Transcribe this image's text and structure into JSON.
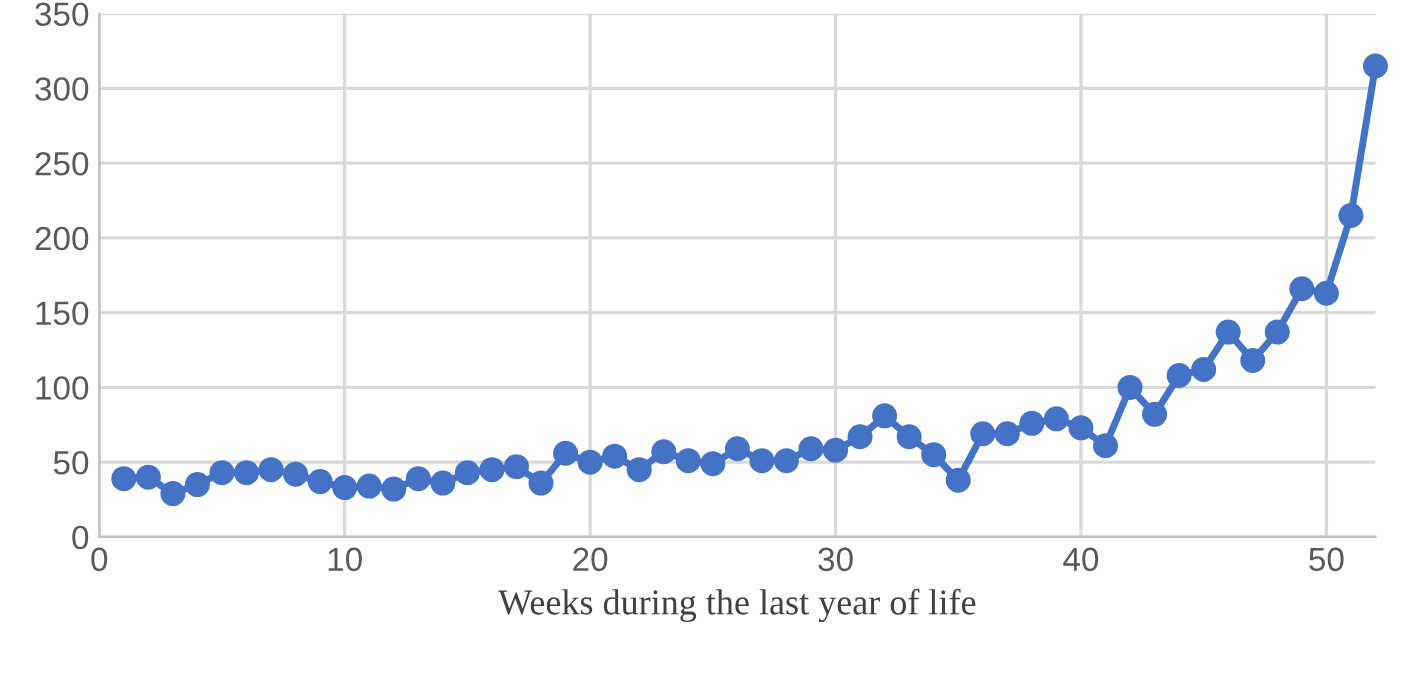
{
  "chart_data": {
    "type": "line",
    "xlabel": "Weeks during the last year of life",
    "x": [
      1,
      2,
      3,
      4,
      5,
      6,
      7,
      8,
      9,
      10,
      11,
      12,
      13,
      14,
      15,
      16,
      17,
      18,
      19,
      20,
      21,
      22,
      23,
      24,
      25,
      26,
      27,
      28,
      29,
      30,
      31,
      32,
      33,
      34,
      35,
      36,
      37,
      38,
      39,
      40,
      41,
      42,
      43,
      44,
      45,
      46,
      47,
      48,
      49,
      50,
      51,
      52
    ],
    "series": [
      {
        "color": "#4472c4",
        "values": [
          39,
          40,
          29,
          35,
          43,
          43,
          45,
          42,
          37,
          33,
          34,
          32,
          39,
          36,
          43,
          45,
          47,
          36,
          56,
          50,
          54,
          45,
          57,
          51,
          49,
          59,
          51,
          51,
          59,
          58,
          67,
          81,
          67,
          55,
          38,
          69,
          69,
          76,
          79,
          73,
          61,
          100,
          82,
          108,
          112,
          137,
          118,
          137,
          166,
          163,
          215,
          315
        ]
      }
    ],
    "xlim": [
      0,
      52
    ],
    "xticks": [
      0,
      10,
      20,
      30,
      40,
      50
    ],
    "ylim": [
      0,
      350
    ],
    "yticks": [
      0,
      50,
      100,
      150,
      200,
      250,
      300,
      350
    ],
    "grid": true,
    "marker": "circle",
    "line_style": "solid"
  }
}
